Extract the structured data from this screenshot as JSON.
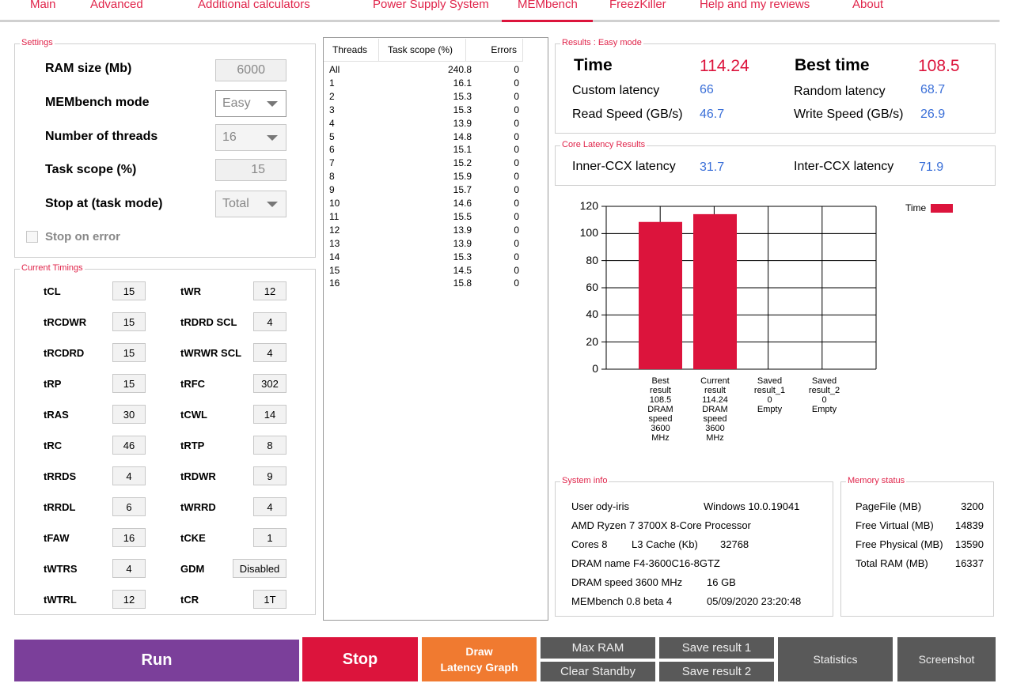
{
  "tabs": [
    "Main",
    "Advanced",
    "Additional calculators",
    "Power Supply System",
    "MEMbench",
    "FreezKiller",
    "Help and my reviews",
    "About"
  ],
  "settings": {
    "title": "Settings",
    "ram_size_label": "RAM size (Mb)",
    "ram_size": "6000",
    "mode_label": "MEMbench mode",
    "mode": "Easy",
    "threads_label": "Number of threads",
    "threads": "16",
    "scope_label": "Task scope (%)",
    "scope": "15",
    "stop_label": "Stop at (task mode)",
    "stop": "Total",
    "stop_error_label": "Stop on error"
  },
  "timings": {
    "title": "Current Timings",
    "left": [
      [
        "tCL",
        "15"
      ],
      [
        "tRCDWR",
        "15"
      ],
      [
        "tRCDRD",
        "15"
      ],
      [
        "tRP",
        "15"
      ],
      [
        "tRAS",
        "30"
      ],
      [
        "tRC",
        "46"
      ],
      [
        "tRRDS",
        "4"
      ],
      [
        "tRRDL",
        "6"
      ],
      [
        "tFAW",
        "16"
      ],
      [
        "tWTRS",
        "4"
      ],
      [
        "tWTRL",
        "12"
      ]
    ],
    "right": [
      [
        "tWR",
        "12"
      ],
      [
        "tRDRD SCL",
        "4"
      ],
      [
        "tWRWR SCL",
        "4"
      ],
      [
        "tRFC",
        "302"
      ],
      [
        "tCWL",
        "14"
      ],
      [
        "tRTP",
        "8"
      ],
      [
        "tRDWR",
        "9"
      ],
      [
        "tWRRD",
        "4"
      ],
      [
        "tCKE",
        "1"
      ],
      [
        "GDM",
        "Disabled"
      ],
      [
        "tCR",
        "1T"
      ]
    ]
  },
  "threads_table": {
    "headers": [
      "Threads",
      "Task scope (%)",
      "Errors"
    ],
    "rows": [
      [
        "All",
        "240.8",
        "0"
      ],
      [
        "1",
        "16.1",
        "0"
      ],
      [
        "2",
        "15.3",
        "0"
      ],
      [
        "3",
        "15.3",
        "0"
      ],
      [
        "4",
        "13.9",
        "0"
      ],
      [
        "5",
        "14.8",
        "0"
      ],
      [
        "6",
        "15.1",
        "0"
      ],
      [
        "7",
        "15.2",
        "0"
      ],
      [
        "8",
        "15.9",
        "0"
      ],
      [
        "9",
        "15.7",
        "0"
      ],
      [
        "10",
        "14.6",
        "0"
      ],
      [
        "11",
        "15.5",
        "0"
      ],
      [
        "12",
        "13.9",
        "0"
      ],
      [
        "13",
        "13.9",
        "0"
      ],
      [
        "14",
        "15.3",
        "0"
      ],
      [
        "15",
        "14.5",
        "0"
      ],
      [
        "16",
        "15.8",
        "0"
      ]
    ]
  },
  "results": {
    "title": "Results : Easy mode",
    "time_label": "Time",
    "time": "114.24",
    "best_label": "Best time",
    "best": "108.5",
    "custom_latency_label": "Custom latency",
    "custom_latency": "66",
    "random_latency_label": "Random latency",
    "random_latency": "68.7",
    "read_label": "Read Speed (GB/s)",
    "read": "46.7",
    "write_label": "Write Speed (GB/s)",
    "write": "26.9"
  },
  "core_latency": {
    "title": "Core Latency Results",
    "inner_label": "Inner-CCX latency",
    "inner": "31.7",
    "inter_label": "Inter-CCX latency",
    "inter": "71.9"
  },
  "chart_data": {
    "type": "bar",
    "categories": [
      "Best result 108.5 DRAM speed 3600 MHz",
      "Current result 114.24 DRAM speed 3600 MHz",
      "Saved result_1 0 Empty",
      "Saved result_2 0 Empty"
    ],
    "category_lines": [
      [
        "Best",
        "result",
        "108.5",
        "DRAM",
        "speed",
        "3600",
        "MHz"
      ],
      [
        "Current",
        "result",
        "114.24",
        "DRAM",
        "speed",
        "3600",
        "MHz"
      ],
      [
        "Saved",
        "result_1",
        "0",
        "Empty"
      ],
      [
        "Saved",
        "result_2",
        "0",
        "Empty"
      ]
    ],
    "series": [
      {
        "name": "Time",
        "values": [
          108.5,
          114.24,
          0,
          0
        ]
      }
    ],
    "yticks": [
      "0",
      "20",
      "40",
      "60",
      "80",
      "100",
      "120"
    ],
    "ylim": [
      0,
      120
    ],
    "legend": "top-right",
    "color": "#dc143c"
  },
  "system_info": {
    "title": "System info",
    "user": "User ody-iris",
    "os": "Windows 10.0.19041",
    "cpu": "AMD Ryzen 7 3700X 8-Core Processor",
    "cores": "Cores 8",
    "l3": "L3 Cache (Kb)",
    "l3_val": "32768",
    "dram_name": "DRAM name F4-3600C16-8GTZ",
    "dram_speed": "DRAM speed 3600 MHz",
    "dram_size": "16 GB",
    "version": "MEMbench 0.8 beta 4",
    "date": "05/09/2020 23:20:48"
  },
  "memory_status": {
    "title": "Memory status",
    "rows": [
      [
        "PageFile (MB)",
        "3200"
      ],
      [
        "Free Virtual (MB)",
        "14839"
      ],
      [
        "Free Physical (MB)",
        "13590"
      ],
      [
        "Total RAM (MB)",
        "16337"
      ]
    ]
  },
  "buttons": {
    "run": "Run",
    "stop": "Stop",
    "draw1": "Draw",
    "draw2": "Latency Graph",
    "max_ram": "Max RAM",
    "clear_standby": "Clear Standby",
    "save1": "Save result 1",
    "save2": "Save result 2",
    "statistics": "Statistics",
    "screenshot": "Screenshot"
  },
  "colors": {
    "accent": "#dc143c",
    "run": "#7b3f9a",
    "draw": "#f07a30",
    "dark": "#595959",
    "blue": "#3a6fd8"
  }
}
